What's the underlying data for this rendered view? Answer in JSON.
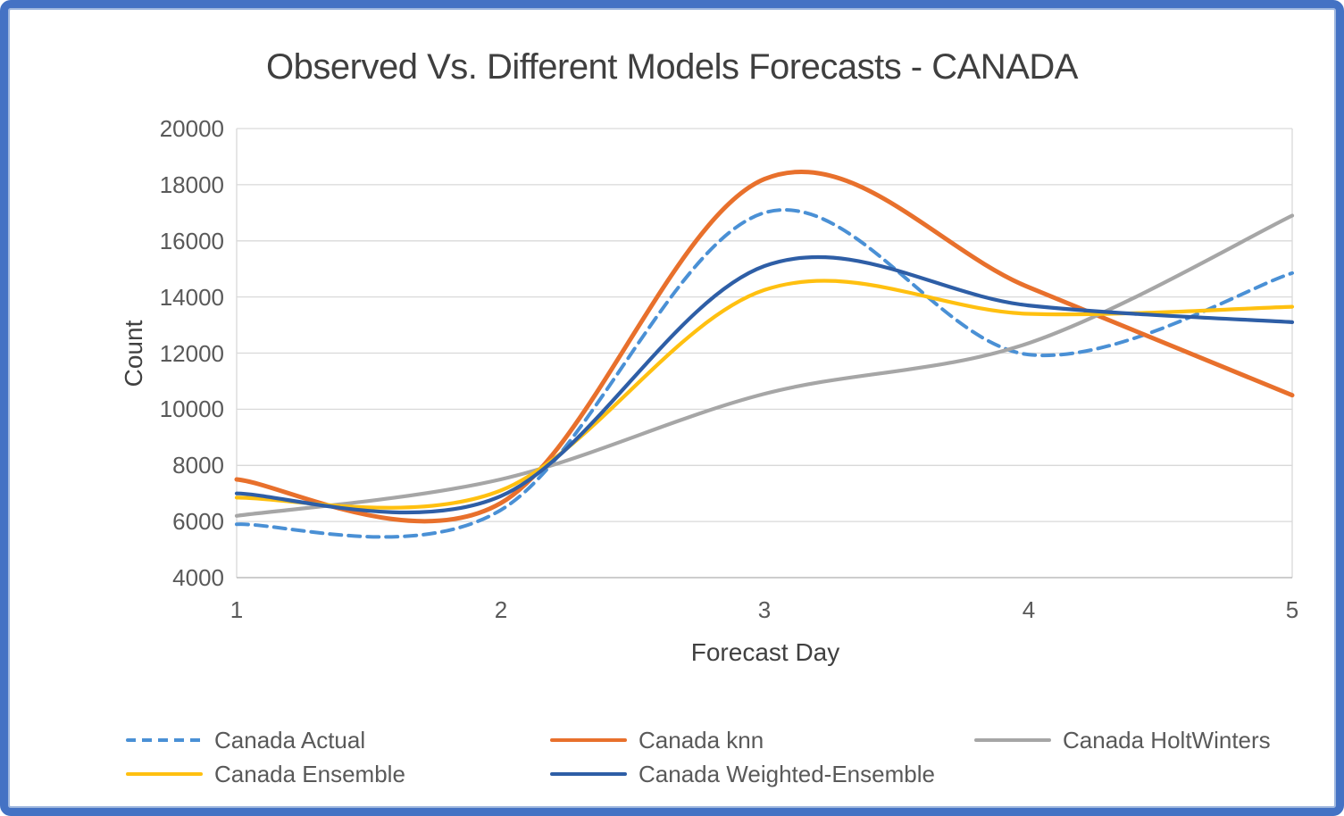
{
  "window": {
    "border_color": "#4472C4",
    "background": "#FFFFFF"
  },
  "chart_data": {
    "type": "line",
    "title": "Observed Vs. Different Models Forecasts - CANADA",
    "xlabel": "Forecast Day",
    "ylabel": "Count",
    "x_ticks": [
      1,
      2,
      3,
      4,
      5
    ],
    "y_ticks": [
      4000,
      6000,
      8000,
      10000,
      12000,
      14000,
      16000,
      18000,
      20000
    ],
    "xlim": [
      1,
      5
    ],
    "ylim": [
      4000,
      20000
    ],
    "grid": "horizontal-only",
    "smooth_lines": true,
    "legend_position": "bottom",
    "colors": {
      "grid": "#D9D9D9",
      "axis": "#BFBFBF",
      "title_text": "#3F3F3F",
      "tick_text": "#595959",
      "legend_text": "#595959"
    },
    "series": [
      {
        "name": "Canada Actual",
        "color": "#4A90D5",
        "style": "dashed",
        "values": [
          5900,
          6400,
          17000,
          11950,
          14850
        ]
      },
      {
        "name": "Canada knn",
        "color": "#E8702C",
        "style": "solid",
        "values": [
          7500,
          6650,
          18200,
          14350,
          10500
        ]
      },
      {
        "name": "Canada HoltWinters",
        "color": "#A6A6A6",
        "style": "solid",
        "values": [
          6200,
          7500,
          10550,
          12350,
          16900
        ]
      },
      {
        "name": "Canada Ensemble",
        "color": "#FFC010",
        "style": "solid",
        "values": [
          6850,
          7100,
          14250,
          13400,
          13650
        ]
      },
      {
        "name": "Canada Weighted-Ensemble",
        "color": "#2E5EA6",
        "style": "solid",
        "values": [
          7000,
          6900,
          15100,
          13700,
          13100
        ]
      }
    ]
  }
}
